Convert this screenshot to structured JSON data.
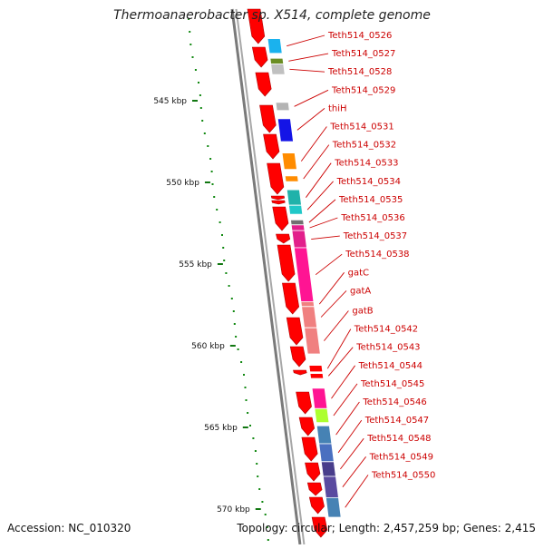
{
  "title": "Thermoanaerobacter sp. X514, complete genome",
  "accession": "Accession: NC_010320",
  "summary": "Topology: circular; Length: 2,457,259 bp; Genes: 2,415",
  "colors": {
    "cds": "#ff0000",
    "backbone": "#808080",
    "label": "#cc0000",
    "tick": "#117711",
    "gc": "#118811"
  },
  "ruler": [
    {
      "label": "545 kbp",
      "kbp": 545
    },
    {
      "label": "550 kbp",
      "kbp": 550
    },
    {
      "label": "555 kbp",
      "kbp": 555
    },
    {
      "label": "560 kbp",
      "kbp": 560
    },
    {
      "label": "565 kbp",
      "kbp": 565
    },
    {
      "label": "570 kbp",
      "kbp": 570
    }
  ],
  "genes": [
    {
      "label": "Teth514_0526",
      "start_kbp": 541.2,
      "end_kbp": 542.1,
      "color": "#1ab2ee"
    },
    {
      "label": "Teth514_0527",
      "start_kbp": 542.4,
      "end_kbp": 542.75,
      "color": "#6b8e23"
    },
    {
      "label": "Teth514_0528",
      "start_kbp": 542.75,
      "end_kbp": 543.4,
      "color": "#c0c0c0"
    },
    {
      "label": "Teth514_0529",
      "start_kbp": 545.1,
      "end_kbp": 545.6,
      "color": "#b4b4b4"
    },
    {
      "label": "thiH",
      "start_kbp": 546.1,
      "end_kbp": 547.5,
      "color": "#1414e6"
    },
    {
      "label": "Teth514_0531",
      "start_kbp": 548.2,
      "end_kbp": 549.2,
      "color": "#ff8c00"
    },
    {
      "label": "Teth514_0532",
      "start_kbp": 549.6,
      "end_kbp": 549.95,
      "color": "#ff8c00"
    },
    {
      "label": "Teth514_0533",
      "start_kbp": 550.45,
      "end_kbp": 551.4,
      "color": "#20b2aa"
    },
    {
      "label": "Teth514_0534",
      "start_kbp": 551.4,
      "end_kbp": 551.95,
      "color": "#20c8c8"
    },
    {
      "label": "Teth514_0535",
      "start_kbp": 552.3,
      "end_kbp": 552.6,
      "color": "#707070"
    },
    {
      "label": "Teth514_0536",
      "start_kbp": 552.6,
      "end_kbp": 552.95,
      "color": "#e21f8b"
    },
    {
      "label": "Teth514_0537",
      "start_kbp": 552.95,
      "end_kbp": 554.0,
      "color": "#e21f8b"
    },
    {
      "label": "Teth514_0538",
      "start_kbp": 554.0,
      "end_kbp": 557.3,
      "color": "#ff1493"
    },
    {
      "label": "gatC",
      "start_kbp": 557.3,
      "end_kbp": 557.6,
      "color": "#f08080"
    },
    {
      "label": "gatA",
      "start_kbp": 557.6,
      "end_kbp": 558.9,
      "color": "#f08080"
    },
    {
      "label": "gatB",
      "start_kbp": 558.9,
      "end_kbp": 560.5,
      "color": "#f08080"
    },
    {
      "label": "Teth514_0542",
      "start_kbp": 561.2,
      "end_kbp": 561.6,
      "color": "#ff0000"
    },
    {
      "label": "Teth514_0543",
      "start_kbp": 561.7,
      "end_kbp": 562.0,
      "color": "#ff0000"
    },
    {
      "label": "Teth514_0544",
      "start_kbp": 562.6,
      "end_kbp": 563.85,
      "color": "#ff1493"
    },
    {
      "label": "Teth514_0545",
      "start_kbp": 563.85,
      "end_kbp": 564.7,
      "color": "#adff2f"
    },
    {
      "label": "Teth514_0546",
      "start_kbp": 564.9,
      "end_kbp": 566.0,
      "color": "#4682b4"
    },
    {
      "label": "Teth514_0547",
      "start_kbp": 566.0,
      "end_kbp": 567.1,
      "color": "#4a70c0"
    },
    {
      "label": "Teth514_0548",
      "start_kbp": 567.1,
      "end_kbp": 568.0,
      "color": "#483d8b"
    },
    {
      "label": "Teth514_0549",
      "start_kbp": 568.0,
      "end_kbp": 569.3,
      "color": "#5a4aa0"
    },
    {
      "label": "Teth514_0550",
      "start_kbp": 569.3,
      "end_kbp": 570.5,
      "color": "#4682b4"
    }
  ]
}
